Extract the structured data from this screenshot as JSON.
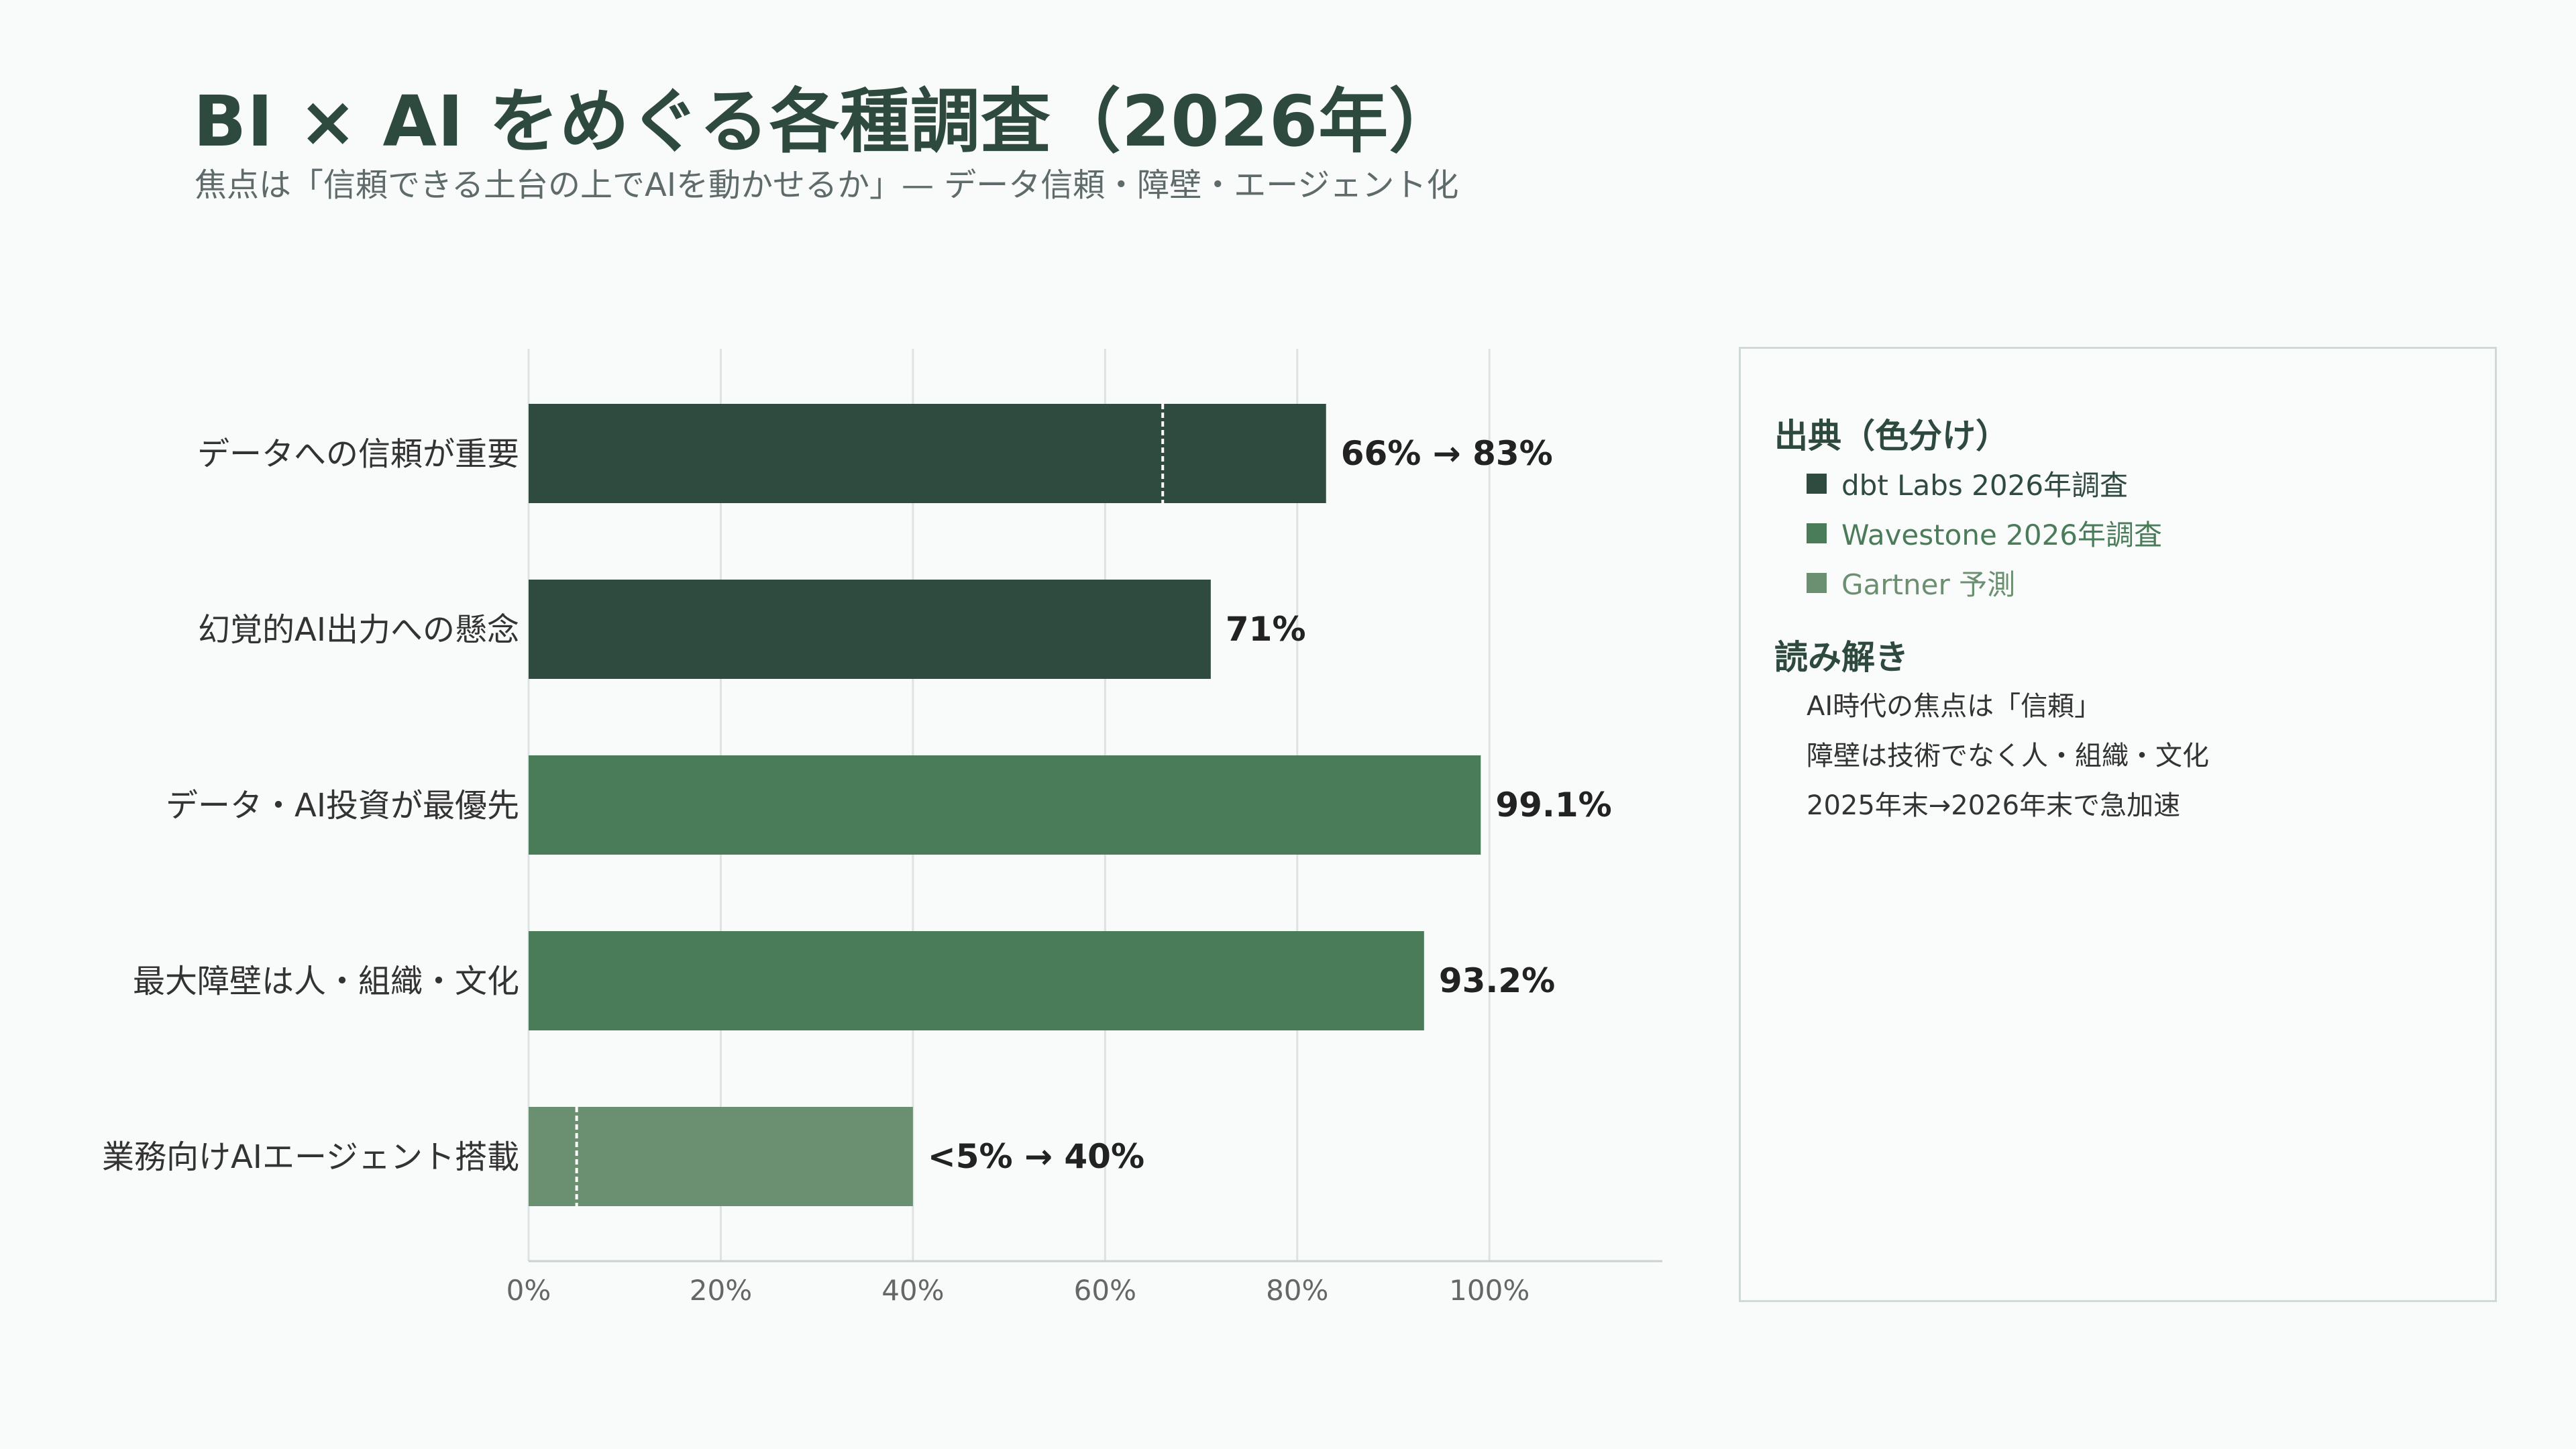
{
  "header": {
    "title": "BI × AI をめぐる各種調査（2026年）",
    "subtitle": "焦点は「信頼できる土台の上でAIを動かせるか」— データ信頼・障壁・エージェント化"
  },
  "colors": {
    "dbt": "#2f4a3f",
    "wavestone": "#4a7c59",
    "gartner": "#6b8f71",
    "grid": "#dde3e1",
    "marker": "#ffffff"
  },
  "chart_data": {
    "type": "bar",
    "orientation": "horizontal",
    "title": "",
    "xlabel": "",
    "ylabel": "",
    "xlim": [
      0,
      118
    ],
    "xticks": [
      0,
      20,
      40,
      60,
      80,
      100
    ],
    "xtick_labels": [
      "0%",
      "20%",
      "40%",
      "60%",
      "80%",
      "100%"
    ],
    "grid": true,
    "categories": [
      "データへの信頼が重要",
      "幻覚的AI出力への懸念",
      "データ・AI投資が最優先",
      "最大障壁は人・組織・文化",
      "業務向けAIエージェント搭載"
    ],
    "values": [
      83,
      71,
      99.1,
      93.2,
      40
    ],
    "previous_values": [
      66,
      null,
      null,
      null,
      5
    ],
    "sources": [
      "dbt",
      "dbt",
      "wavestone",
      "wavestone",
      "gartner"
    ],
    "value_labels": [
      "66% → 83%",
      "71%",
      "99.1%",
      "93.2%",
      "<5% → 40%"
    ]
  },
  "panel": {
    "legend_heading": "出典（色分け）",
    "legend": [
      {
        "key": "dbt",
        "label": "dbt Labs 2026年調査"
      },
      {
        "key": "wavestone",
        "label": "Wavestone 2026年調査"
      },
      {
        "key": "gartner",
        "label": "Gartner 予測"
      }
    ],
    "notes_heading": "読み解き",
    "notes": [
      "AI時代の焦点は「信頼」",
      "障壁は技術でなく人・組織・文化",
      "2025年末→2026年末で急加速"
    ]
  }
}
